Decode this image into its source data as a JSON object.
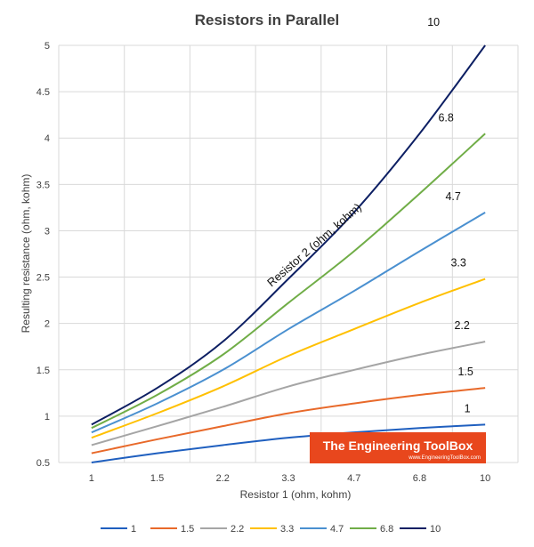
{
  "chart_data": {
    "type": "line",
    "title": "Resistors in Parallel",
    "xlabel": "Resistor 1 (ohm, kohm)",
    "ylabel": "Resulting resistance (ohm, kohm)",
    "categories": [
      "1",
      "1.5",
      "2.2",
      "3.3",
      "4.7",
      "6.8",
      "10"
    ],
    "ylim": [
      0.5,
      5
    ],
    "yticks": [
      "0.5",
      "1",
      "1.5",
      "2",
      "2.5",
      "3",
      "3.5",
      "4",
      "4.5",
      "5"
    ],
    "grid": true,
    "legend": "bottom",
    "series": [
      {
        "name": "1",
        "label": "1",
        "color": "#1f5fbf",
        "values": [
          0.5,
          0.6,
          0.6875,
          0.7674,
          0.8246,
          0.8718,
          0.9091
        ]
      },
      {
        "name": "1.5",
        "label": "1.5",
        "color": "#e8692a",
        "values": [
          0.6,
          0.75,
          0.8919,
          1.0313,
          1.1371,
          1.2289,
          1.3043
        ]
      },
      {
        "name": "2.2",
        "label": "2.2",
        "color": "#a5a5a5",
        "values": [
          0.6875,
          0.8919,
          1.1,
          1.32,
          1.4986,
          1.6622,
          1.8033
        ]
      },
      {
        "name": "3.3",
        "label": "3.3",
        "color": "#ffc000",
        "values": [
          0.7674,
          1.0313,
          1.32,
          1.65,
          1.9388,
          2.2218,
          2.4812
        ]
      },
      {
        "name": "4.7",
        "label": "4.7",
        "color": "#4a90d0",
        "values": [
          0.8246,
          1.1371,
          1.4986,
          1.9388,
          2.35,
          2.779,
          3.1973
        ]
      },
      {
        "name": "6.8",
        "label": "6.8",
        "color": "#70ad47",
        "values": [
          0.8718,
          1.2289,
          1.6622,
          2.2218,
          2.779,
          3.4,
          4.0476
        ]
      },
      {
        "name": "10",
        "label": "10",
        "color": "#0d1f63",
        "values": [
          0.9091,
          1.3043,
          1.8033,
          2.4812,
          3.1973,
          4.0476,
          5.0
        ]
      }
    ],
    "annotation": "Resistor 2 (ohm, kohm)",
    "watermark": {
      "title": "The Engineering ToolBox",
      "url": "www.EngineeringToolBox.com",
      "color": "#e8471d"
    }
  }
}
